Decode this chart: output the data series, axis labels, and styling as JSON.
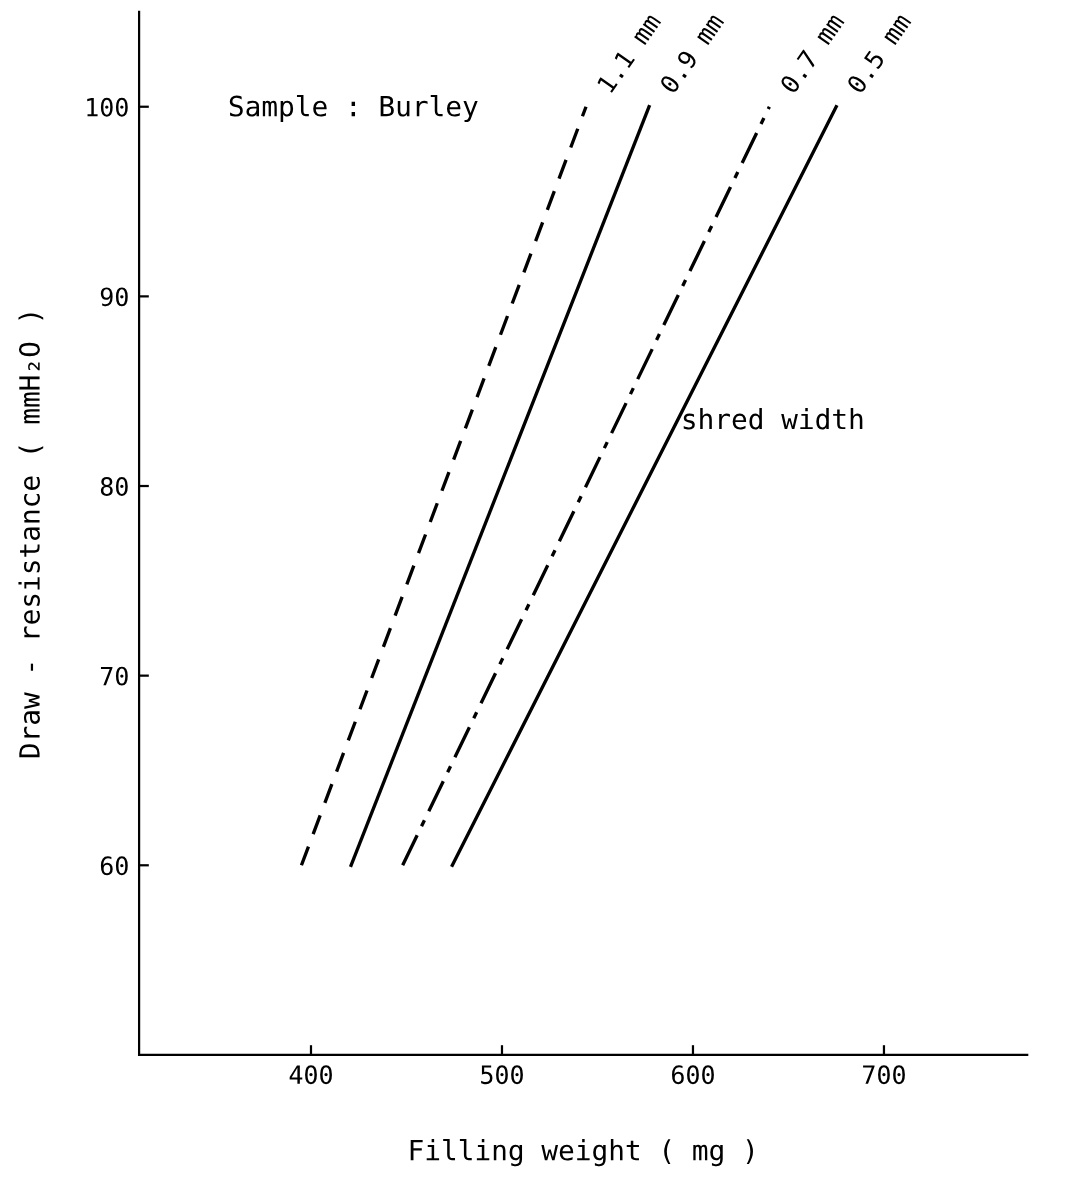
{
  "chart_data": {
    "type": "line",
    "xlabel": "Filling weight ( mg )",
    "ylabel": "Draw - resistance ( mmH₂O )",
    "xlim": [
      310,
      775
    ],
    "ylim": [
      50,
      105
    ],
    "xticks": [
      400,
      500,
      600,
      700
    ],
    "yticks": [
      60,
      70,
      80,
      90,
      100
    ],
    "grid": false,
    "legend": false,
    "marker": "none",
    "annotations": [
      "Sample : Burley",
      "shred width"
    ],
    "series": [
      {
        "name": "1.1 mm",
        "color": "#000000",
        "line_style": "dashed",
        "x": [
          395,
          544
        ],
        "values": [
          60,
          100
        ]
      },
      {
        "name": "0.9 mm",
        "color": "#000000",
        "line_style": "solid",
        "x": [
          421,
          577
        ],
        "values": [
          60,
          100
        ]
      },
      {
        "name": "0.7 mm",
        "color": "#000000",
        "line_style": "dashdot",
        "x": [
          448,
          640
        ],
        "values": [
          60,
          100
        ]
      },
      {
        "name": "0.5 mm",
        "color": "#000000",
        "line_style": "solid",
        "x": [
          474,
          675
        ],
        "values": [
          60,
          100
        ]
      }
    ]
  }
}
